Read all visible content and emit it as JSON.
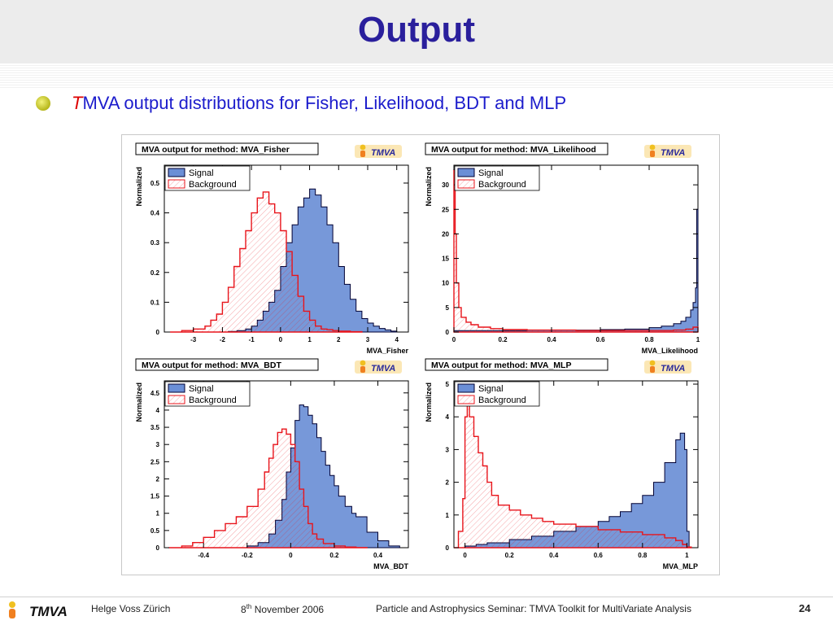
{
  "slide": {
    "title": "Output",
    "bullet_t": "T",
    "bullet_rest": "MVA output distributions for Fisher, Likelihood, BDT and MLP"
  },
  "footer": {
    "logo": "TMVA",
    "author": "Helge Voss Zürich",
    "date_day": "8",
    "date_sup": "th",
    "date_rest": " November 2006",
    "event": "Particle and Astrophysics Seminar:   TMVA Toolkit for MultiVariate Analysis",
    "page": "24"
  },
  "colors": {
    "title": "#2a1f9c",
    "bullet_text": "#1c1ccc",
    "signal_fill": "#6b8fd6",
    "signal_line": "#000033",
    "background_line": "#e8141b",
    "tmva_badge_bg": "#fbe7b5",
    "tmva_badge_text": "#2a2a9c"
  },
  "chart_data": [
    {
      "type": "area",
      "title": "MVA output for method: MVA_Fisher",
      "badge": "TMVA",
      "xlabel": "MVA_Fisher",
      "ylabel": "Normalized",
      "xlim": [
        -4.0,
        4.4
      ],
      "ylim": [
        0,
        0.56
      ],
      "xticks": [
        -3,
        -2,
        -1,
        0,
        1,
        2,
        3,
        4
      ],
      "yticks": [
        0,
        0.1,
        0.2,
        0.3,
        0.4,
        0.5
      ],
      "legend": {
        "position": "top-left",
        "entries": [
          "Signal",
          "Background"
        ]
      },
      "series": [
        {
          "name": "Signal",
          "style": "filled",
          "x": [
            -2.2,
            -1.8,
            -1.5,
            -1.2,
            -1.0,
            -0.8,
            -0.6,
            -0.4,
            -0.2,
            0.0,
            0.2,
            0.4,
            0.6,
            0.8,
            1.0,
            1.2,
            1.4,
            1.6,
            1.8,
            2.0,
            2.2,
            2.4,
            2.6,
            2.8,
            3.0,
            3.2,
            3.4,
            3.6,
            3.8,
            4.0
          ],
          "y": [
            0,
            0.002,
            0.005,
            0.01,
            0.02,
            0.04,
            0.07,
            0.1,
            0.14,
            0.22,
            0.3,
            0.36,
            0.42,
            0.45,
            0.48,
            0.46,
            0.42,
            0.36,
            0.3,
            0.22,
            0.16,
            0.11,
            0.07,
            0.045,
            0.03,
            0.02,
            0.012,
            0.007,
            0.003,
            0
          ]
        },
        {
          "name": "Background",
          "style": "hatched",
          "x": [
            -3.8,
            -3.4,
            -3.0,
            -2.6,
            -2.4,
            -2.2,
            -2.0,
            -1.8,
            -1.6,
            -1.4,
            -1.2,
            -1.0,
            -0.8,
            -0.6,
            -0.4,
            -0.2,
            0.0,
            0.2,
            0.4,
            0.6,
            0.8,
            1.0,
            1.2,
            1.4,
            1.6,
            1.8,
            2.0,
            2.4,
            2.8
          ],
          "y": [
            0,
            0.005,
            0.01,
            0.02,
            0.04,
            0.06,
            0.1,
            0.15,
            0.22,
            0.28,
            0.34,
            0.4,
            0.45,
            0.47,
            0.43,
            0.4,
            0.34,
            0.27,
            0.19,
            0.12,
            0.07,
            0.04,
            0.02,
            0.01,
            0.008,
            0.005,
            0.003,
            0.001,
            0
          ]
        }
      ]
    },
    {
      "type": "area",
      "title": "MVA output for method: MVA_Likelihood",
      "badge": "TMVA",
      "xlabel": "MVA_Likelihood",
      "ylabel": "Normalized",
      "xlim": [
        0,
        1
      ],
      "ylim": [
        0,
        34
      ],
      "xticks": [
        0,
        0.2,
        0.4,
        0.6,
        0.8,
        1
      ],
      "yticks": [
        0,
        5,
        10,
        15,
        20,
        25,
        30
      ],
      "legend": {
        "position": "top-left",
        "entries": [
          "Signal",
          "Background"
        ]
      },
      "series": [
        {
          "name": "Signal",
          "style": "filled",
          "x": [
            0.0,
            0.02,
            0.05,
            0.1,
            0.2,
            0.3,
            0.4,
            0.5,
            0.6,
            0.7,
            0.8,
            0.85,
            0.9,
            0.93,
            0.95,
            0.97,
            0.98,
            0.99,
            0.995,
            1.0
          ],
          "y": [
            0.3,
            0.3,
            0.3,
            0.3,
            0.3,
            0.4,
            0.4,
            0.4,
            0.5,
            0.6,
            0.9,
            1.2,
            1.7,
            2.2,
            3,
            4.5,
            6,
            9,
            25,
            0
          ]
        },
        {
          "name": "Background",
          "style": "hatched",
          "x": [
            0.0,
            0.005,
            0.01,
            0.02,
            0.03,
            0.05,
            0.07,
            0.1,
            0.15,
            0.2,
            0.3,
            0.5,
            0.7,
            0.9,
            0.95,
            0.98,
            1.0
          ],
          "y": [
            33,
            20,
            10,
            5,
            3,
            2,
            1.5,
            1,
            0.7,
            0.5,
            0.4,
            0.3,
            0.3,
            0.4,
            0.6,
            1.0,
            0
          ]
        }
      ]
    },
    {
      "type": "area",
      "title": "MVA output for method: MVA_BDT",
      "badge": "TMVA",
      "xlabel": "MVA_BDT",
      "ylabel": "Normalized",
      "xlim": [
        -0.58,
        0.54
      ],
      "ylim": [
        0,
        4.85
      ],
      "xticks": [
        -0.4,
        -0.2,
        0,
        0.2,
        0.4
      ],
      "yticks": [
        0,
        0.5,
        1,
        1.5,
        2,
        2.5,
        3,
        3.5,
        4,
        4.5
      ],
      "legend": {
        "position": "top-left",
        "entries": [
          "Signal",
          "Background"
        ]
      },
      "series": [
        {
          "name": "Signal",
          "style": "filled",
          "x": [
            -0.3,
            -0.2,
            -0.15,
            -0.1,
            -0.07,
            -0.04,
            -0.02,
            0.0,
            0.02,
            0.04,
            0.06,
            0.08,
            0.1,
            0.12,
            0.14,
            0.16,
            0.18,
            0.2,
            0.22,
            0.25,
            0.28,
            0.3,
            0.35,
            0.4,
            0.45,
            0.5
          ],
          "y": [
            0,
            0.05,
            0.15,
            0.4,
            0.8,
            1.4,
            2.2,
            2.9,
            3.7,
            4.15,
            4.1,
            3.85,
            3.6,
            3.2,
            2.8,
            2.4,
            2.1,
            1.8,
            1.5,
            1.2,
            1,
            0.9,
            0.45,
            0.2,
            0.05,
            0
          ]
        },
        {
          "name": "Background",
          "style": "hatched",
          "x": [
            -0.56,
            -0.5,
            -0.45,
            -0.4,
            -0.35,
            -0.3,
            -0.25,
            -0.2,
            -0.15,
            -0.12,
            -0.1,
            -0.08,
            -0.06,
            -0.04,
            -0.02,
            0.0,
            0.02,
            0.04,
            0.06,
            0.08,
            0.1,
            0.12,
            0.15,
            0.2,
            0.25,
            0.3,
            0.35
          ],
          "y": [
            0,
            0.05,
            0.15,
            0.3,
            0.5,
            0.7,
            0.9,
            1.2,
            1.7,
            2.2,
            2.6,
            3.0,
            3.35,
            3.45,
            3.3,
            3.0,
            2.5,
            1.7,
            1.2,
            0.7,
            0.4,
            0.25,
            0.12,
            0.05,
            0.02,
            0.005,
            0
          ]
        }
      ]
    },
    {
      "type": "area",
      "title": "MVA output for method: MVA_MLP",
      "badge": "TMVA",
      "xlabel": "MVA_MLP",
      "ylabel": "Normalized",
      "xlim": [
        -0.05,
        1.05
      ],
      "ylim": [
        0,
        5.1
      ],
      "xticks": [
        0,
        0.2,
        0.4,
        0.6,
        0.8,
        1
      ],
      "yticks": [
        0,
        1,
        2,
        3,
        4,
        5
      ],
      "legend": {
        "position": "top-left",
        "entries": [
          "Signal",
          "Background"
        ]
      },
      "series": [
        {
          "name": "Signal",
          "style": "filled",
          "x": [
            -0.05,
            0.0,
            0.05,
            0.1,
            0.2,
            0.3,
            0.4,
            0.5,
            0.6,
            0.65,
            0.7,
            0.75,
            0.8,
            0.85,
            0.9,
            0.95,
            0.97,
            0.99,
            1.0,
            1.01
          ],
          "y": [
            0,
            0.05,
            0.1,
            0.15,
            0.25,
            0.35,
            0.5,
            0.65,
            0.8,
            0.95,
            1.1,
            1.35,
            1.6,
            2.0,
            2.6,
            3.3,
            3.5,
            3.0,
            0.5,
            0
          ]
        },
        {
          "name": "Background",
          "style": "hatched",
          "x": [
            -0.05,
            -0.03,
            -0.01,
            0.0,
            0.01,
            0.02,
            0.04,
            0.06,
            0.08,
            0.1,
            0.12,
            0.15,
            0.2,
            0.25,
            0.3,
            0.35,
            0.4,
            0.5,
            0.6,
            0.7,
            0.8,
            0.9,
            0.95,
            0.98,
            1.0,
            1.02
          ],
          "y": [
            0,
            0.5,
            1.5,
            4.0,
            4.4,
            4.0,
            3.4,
            2.9,
            2.5,
            2.0,
            1.6,
            1.3,
            1.15,
            1.0,
            0.9,
            0.8,
            0.72,
            0.65,
            0.55,
            0.48,
            0.4,
            0.3,
            0.22,
            0.1,
            0.02,
            0
          ]
        }
      ]
    }
  ]
}
